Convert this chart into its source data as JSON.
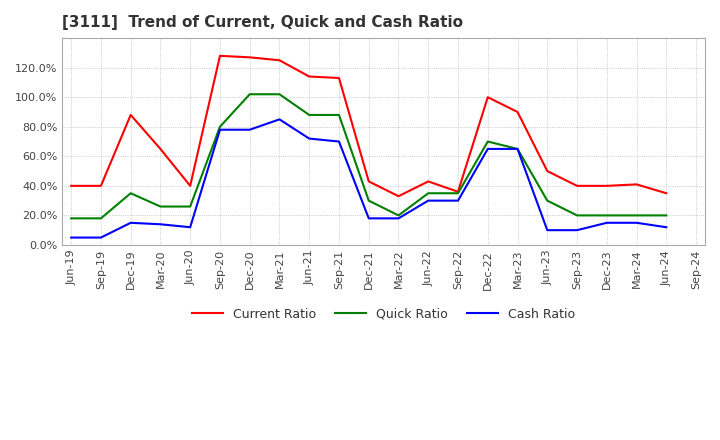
{
  "title": "[3111]  Trend of Current, Quick and Cash Ratio",
  "x_labels": [
    "Jun-19",
    "Sep-19",
    "Dec-19",
    "Mar-20",
    "Jun-20",
    "Sep-20",
    "Dec-20",
    "Mar-21",
    "Jun-21",
    "Sep-21",
    "Dec-21",
    "Mar-22",
    "Jun-22",
    "Sep-22",
    "Dec-22",
    "Mar-23",
    "Jun-23",
    "Sep-23",
    "Dec-23",
    "Mar-24",
    "Jun-24",
    "Sep-24"
  ],
  "current_ratio": [
    40.0,
    40.0,
    88.0,
    65.0,
    40.0,
    128.0,
    127.0,
    125.0,
    114.0,
    113.0,
    43.0,
    33.0,
    43.0,
    36.0,
    100.0,
    90.0,
    50.0,
    40.0,
    40.0,
    41.0,
    35.0,
    null
  ],
  "quick_ratio": [
    18.0,
    18.0,
    35.0,
    26.0,
    26.0,
    80.0,
    102.0,
    102.0,
    88.0,
    88.0,
    30.0,
    20.0,
    35.0,
    35.0,
    70.0,
    65.0,
    30.0,
    20.0,
    20.0,
    20.0,
    20.0,
    null
  ],
  "cash_ratio": [
    5.0,
    5.0,
    15.0,
    14.0,
    12.0,
    78.0,
    78.0,
    85.0,
    72.0,
    70.0,
    18.0,
    18.0,
    30.0,
    30.0,
    65.0,
    65.0,
    10.0,
    10.0,
    15.0,
    15.0,
    12.0,
    null
  ],
  "current_color": "#FF0000",
  "quick_color": "#008000",
  "cash_color": "#0000FF",
  "ylim": [
    0.0,
    140.0
  ],
  "yticks": [
    0.0,
    20.0,
    40.0,
    60.0,
    80.0,
    100.0,
    120.0
  ],
  "background_color": "#ffffff",
  "grid_color": "#aaaaaa",
  "title_fontsize": 11,
  "tick_fontsize": 8
}
